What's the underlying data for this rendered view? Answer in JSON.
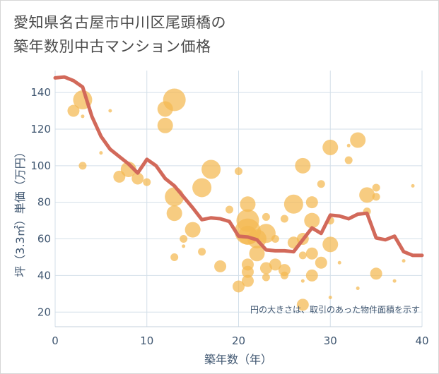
{
  "title_line1": "愛知県名古屋市中川区尾頭橋の",
  "title_line2": "築年数別中古マンション価格",
  "colors": {
    "bubble": "#f4b850",
    "line": "#d2695a",
    "grid": "#d3dfe9",
    "text": "#3f5670"
  },
  "chart_data": {
    "type": "scatter",
    "xlabel": "築年数（年）",
    "ylabel": "坪（3.3㎡）単価（万円）",
    "note": "円の大きさは、取引のあった物件面積を示す",
    "xlim": [
      0,
      40
    ],
    "ylim": [
      12,
      152
    ],
    "xticks": [
      0,
      10,
      20,
      30,
      40
    ],
    "yticks": [
      20,
      40,
      60,
      80,
      100,
      120,
      140
    ],
    "line": {
      "x": [
        0,
        1,
        2,
        3,
        4,
        5,
        6,
        7,
        8,
        9,
        10,
        11,
        12,
        13,
        14,
        15,
        16,
        17,
        18,
        19,
        20,
        21,
        22,
        23,
        24,
        25,
        26,
        27,
        28,
        29,
        30,
        31,
        32,
        33,
        34,
        35,
        36,
        37,
        38,
        39,
        40
      ],
      "y": [
        148,
        148.5,
        146.5,
        143,
        127,
        116,
        109,
        105,
        101,
        96,
        103.5,
        100,
        93,
        89,
        83,
        77,
        70.5,
        71.5,
        71,
        69.5,
        61.5,
        61,
        59.5,
        54,
        53.5,
        53.5,
        53,
        59.5,
        66,
        63,
        73,
        72.5,
        71,
        73.5,
        74,
        60.5,
        59.5,
        61.5,
        53,
        51,
        51
      ]
    },
    "bubbles": [
      {
        "x": 2,
        "y": 130,
        "s": 3
      },
      {
        "x": 3,
        "y": 136,
        "s": 5
      },
      {
        "x": 3,
        "y": 127,
        "s": 1
      },
      {
        "x": 3,
        "y": 100,
        "s": 2
      },
      {
        "x": 5,
        "y": 107,
        "s": 1
      },
      {
        "x": 6,
        "y": 130,
        "s": 1
      },
      {
        "x": 7,
        "y": 94,
        "s": 3
      },
      {
        "x": 8,
        "y": 98,
        "s": 4
      },
      {
        "x": 9,
        "y": 93,
        "s": 3
      },
      {
        "x": 10,
        "y": 91,
        "s": 2
      },
      {
        "x": 12,
        "y": 131,
        "s": 4
      },
      {
        "x": 12,
        "y": 122,
        "s": 4
      },
      {
        "x": 13,
        "y": 136,
        "s": 6
      },
      {
        "x": 13,
        "y": 83,
        "s": 5
      },
      {
        "x": 13,
        "y": 74,
        "s": 4
      },
      {
        "x": 13,
        "y": 50,
        "s": 2
      },
      {
        "x": 14,
        "y": 60,
        "s": 2
      },
      {
        "x": 14,
        "y": 56,
        "s": 1
      },
      {
        "x": 15,
        "y": 65,
        "s": 4
      },
      {
        "x": 16,
        "y": 88,
        "s": 5
      },
      {
        "x": 16,
        "y": 53,
        "s": 2
      },
      {
        "x": 17,
        "y": 98,
        "s": 5
      },
      {
        "x": 18,
        "y": 45,
        "s": 3
      },
      {
        "x": 19,
        "y": 76,
        "s": 2
      },
      {
        "x": 20,
        "y": 97,
        "s": 2
      },
      {
        "x": 20,
        "y": 34,
        "s": 3
      },
      {
        "x": 21,
        "y": 79,
        "s": 4
      },
      {
        "x": 21,
        "y": 70,
        "s": 6
      },
      {
        "x": 21,
        "y": 64,
        "s": 7
      },
      {
        "x": 21,
        "y": 62,
        "s": 5
      },
      {
        "x": 21,
        "y": 46,
        "s": 3
      },
      {
        "x": 21,
        "y": 42,
        "s": 3
      },
      {
        "x": 21,
        "y": 37,
        "s": 3
      },
      {
        "x": 22,
        "y": 60,
        "s": 5
      },
      {
        "x": 22,
        "y": 52,
        "s": 4
      },
      {
        "x": 23,
        "y": 72,
        "s": 2
      },
      {
        "x": 23,
        "y": 63,
        "s": 5
      },
      {
        "x": 23,
        "y": 44,
        "s": 3
      },
      {
        "x": 23,
        "y": 39,
        "s": 2
      },
      {
        "x": 24,
        "y": 60,
        "s": 2
      },
      {
        "x": 24,
        "y": 46,
        "s": 3
      },
      {
        "x": 25,
        "y": 71,
        "s": 2
      },
      {
        "x": 25,
        "y": 43,
        "s": 3
      },
      {
        "x": 25,
        "y": 40,
        "s": 2
      },
      {
        "x": 26,
        "y": 79,
        "s": 5
      },
      {
        "x": 26,
        "y": 58,
        "s": 3
      },
      {
        "x": 27,
        "y": 100,
        "s": 4
      },
      {
        "x": 27,
        "y": 60,
        "s": 3
      },
      {
        "x": 27,
        "y": 51,
        "s": 2
      },
      {
        "x": 27,
        "y": 37,
        "s": 1
      },
      {
        "x": 27,
        "y": 24,
        "s": 3
      },
      {
        "x": 28,
        "y": 80,
        "s": 3
      },
      {
        "x": 28,
        "y": 70,
        "s": 4
      },
      {
        "x": 28,
        "y": 52,
        "s": 3
      },
      {
        "x": 28,
        "y": 40,
        "s": 3
      },
      {
        "x": 29,
        "y": 90,
        "s": 2
      },
      {
        "x": 29,
        "y": 47,
        "s": 3
      },
      {
        "x": 30,
        "y": 110,
        "s": 4
      },
      {
        "x": 30,
        "y": 70,
        "s": 2
      },
      {
        "x": 30,
        "y": 57,
        "s": 4
      },
      {
        "x": 30,
        "y": 28,
        "s": 1
      },
      {
        "x": 31,
        "y": 47,
        "s": 1
      },
      {
        "x": 32,
        "y": 111,
        "s": 1
      },
      {
        "x": 32,
        "y": 103,
        "s": 2
      },
      {
        "x": 33,
        "y": 114,
        "s": 4
      },
      {
        "x": 33,
        "y": 33,
        "s": 1
      },
      {
        "x": 34,
        "y": 84,
        "s": 4
      },
      {
        "x": 34,
        "y": 75,
        "s": 2
      },
      {
        "x": 35,
        "y": 88,
        "s": 2
      },
      {
        "x": 35,
        "y": 83,
        "s": 2
      },
      {
        "x": 35,
        "y": 41,
        "s": 3
      },
      {
        "x": 37,
        "y": 37,
        "s": 1
      },
      {
        "x": 38,
        "y": 48,
        "s": 1
      },
      {
        "x": 39,
        "y": 89,
        "s": 1
      }
    ]
  }
}
